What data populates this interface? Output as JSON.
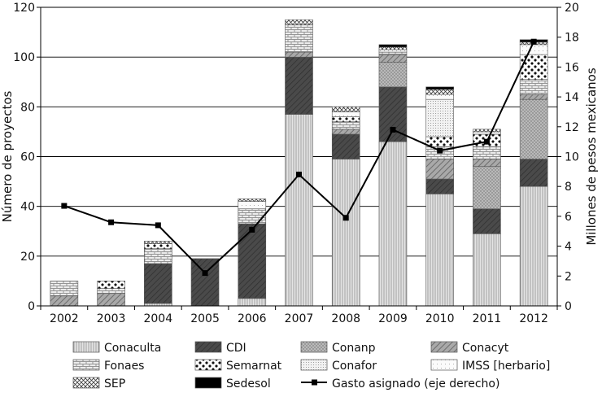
{
  "chart_data": {
    "type": "bar",
    "stacked": true,
    "categories": [
      "2002",
      "2003",
      "2004",
      "2005",
      "2006",
      "2007",
      "2008",
      "2009",
      "2010",
      "2011",
      "2012"
    ],
    "ylabel": "Número de proyectos",
    "y2label": "Millones de pesos mexicanos",
    "ylim": [
      0,
      120
    ],
    "y2lim": [
      0,
      20
    ],
    "yticks": [
      0,
      20,
      40,
      60,
      80,
      100,
      120
    ],
    "y2ticks": [
      0,
      2,
      4,
      6,
      8,
      10,
      12,
      14,
      16,
      18,
      20
    ],
    "grid": true,
    "legend_position": "bottom",
    "series": [
      {
        "name": "Conaculta",
        "pattern": "vlines",
        "values": [
          0,
          0,
          1,
          0,
          3,
          77,
          59,
          66,
          45,
          29,
          48
        ]
      },
      {
        "name": "CDI",
        "pattern": "dark",
        "values": [
          0,
          0,
          16,
          19,
          30,
          23,
          10,
          22,
          6,
          10,
          11
        ]
      },
      {
        "name": "Conanp",
        "pattern": "dots",
        "values": [
          0,
          0,
          0,
          0,
          0,
          0,
          0,
          10,
          0,
          17,
          24
        ]
      },
      {
        "name": "Conacyt",
        "pattern": "ddiag",
        "values": [
          4,
          5,
          0,
          0,
          0,
          2,
          2,
          3,
          8,
          3,
          2
        ]
      },
      {
        "name": "Fonaes",
        "pattern": "hbrick",
        "values": [
          6,
          2,
          6,
          0,
          6,
          11,
          3,
          1,
          5,
          5,
          6
        ]
      },
      {
        "name": "Semarnat",
        "pattern": "diamond",
        "values": [
          0,
          3,
          2,
          0,
          0,
          0,
          2,
          0,
          4,
          5,
          10
        ]
      },
      {
        "name": "Conafor",
        "pattern": "fine",
        "values": [
          0,
          0,
          0,
          0,
          0,
          0,
          0,
          0,
          15,
          0,
          0
        ]
      },
      {
        "name": "IMSS [herbario]",
        "pattern": "sparse",
        "values": [
          0,
          0,
          0,
          0,
          3,
          0,
          2,
          1,
          2,
          1,
          4
        ]
      },
      {
        "name": "SEP",
        "pattern": "cross",
        "values": [
          0,
          0,
          1,
          0,
          1,
          2,
          2,
          1,
          2,
          1,
          1
        ]
      },
      {
        "name": "Sedesol",
        "pattern": "solid",
        "values": [
          0,
          0,
          0,
          0,
          0,
          0,
          0,
          1,
          1,
          0,
          1
        ]
      }
    ],
    "line": {
      "name": "Gasto asignado (eje derecho)",
      "axis": "right",
      "values": [
        6.7,
        5.6,
        5.4,
        2.2,
        5.1,
        8.8,
        5.9,
        11.8,
        10.4,
        11.0,
        17.7
      ]
    }
  }
}
